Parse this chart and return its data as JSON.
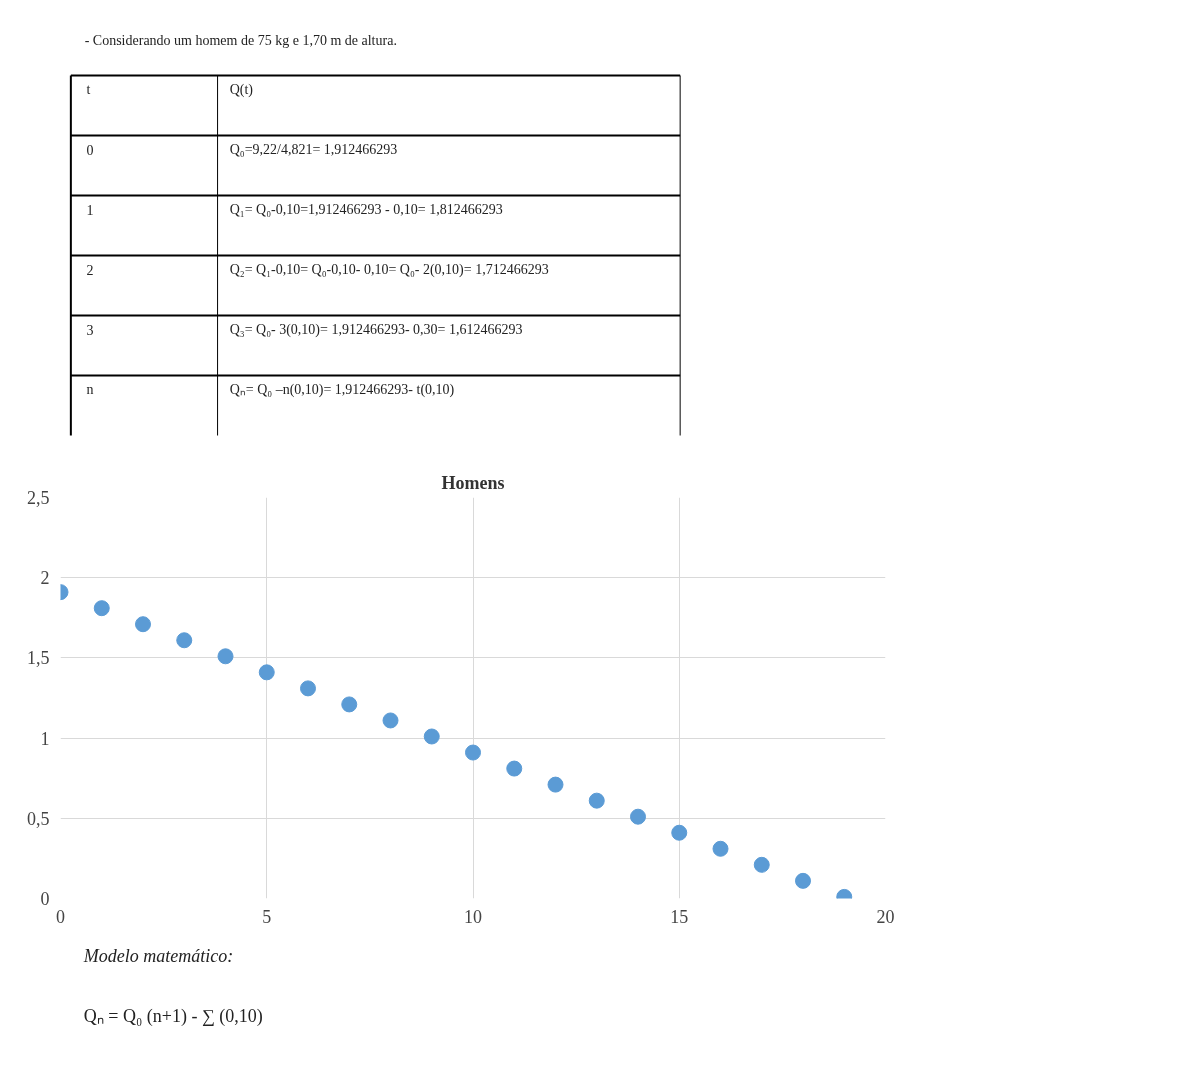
{
  "chart_data": {
    "type": "scatter",
    "title": "Homens",
    "x": [
      0,
      1,
      2,
      3,
      4,
      5,
      6,
      7,
      8,
      9,
      10,
      11,
      12,
      13,
      14,
      15,
      16,
      17,
      18,
      19
    ],
    "values": [
      1.91,
      1.81,
      1.71,
      1.61,
      1.51,
      1.41,
      1.31,
      1.21,
      1.11,
      1.01,
      0.91,
      0.81,
      0.71,
      0.61,
      0.51,
      0.41,
      0.31,
      0.21,
      0.11,
      0.01
    ],
    "color": "#5b9bd5",
    "marker": "circle",
    "grid": true,
    "xlim": [
      0,
      20
    ],
    "xticks": [
      0,
      5,
      10,
      15,
      20
    ],
    "ylim": [
      0,
      2.5
    ],
    "yticks": [
      0,
      {
        "value": 0.5,
        "label": "0,5"
      },
      1,
      {
        "value": 1.5,
        "label": "1,5"
      },
      2,
      {
        "value": 2.5,
        "label": "2,5"
      }
    ],
    "annotations": [
      "- Considerando um homem de 75 kg e 1,70 m de altura.",
      "t",
      "Q(t)",
      "0",
      "Q₀=9,22/4,821= 1,912466293",
      "1",
      "Q₁= Q₀-0,10=1,912466293 - 0,10= 1,812466293",
      "2",
      "Q₂= Q₁-0,10= Q₀-0,10- 0,10= Q₀- 2(0,10)= 1,712466293",
      "3",
      "Q₃= Q₀- 3(0,10)= 1,912466293- 0,30= 1,612466293",
      "n",
      "Qₙ= Q₀ –n(0,10)= 1,912466293- t(0,10)",
      "Modelo matemático:",
      "Qₙ = Q₀ (n+1) - ∑ (0,10)"
    ]
  }
}
